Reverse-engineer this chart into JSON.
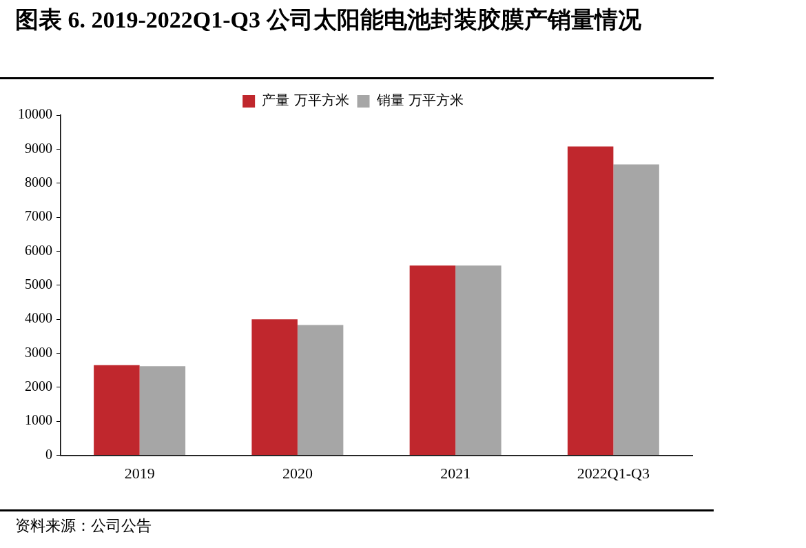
{
  "chart_data": {
    "type": "bar",
    "title": "图表 6.   2019-2022Q1-Q3 公司太阳能电池封装胶膜产销量情况",
    "categories": [
      "2019",
      "2020",
      "2021",
      "2022Q1-Q3"
    ],
    "series": [
      {
        "name": "产量 万平方米",
        "color": "#c0272d",
        "values": [
          2650,
          4000,
          5580,
          9080
        ]
      },
      {
        "name": "销量 万平方米",
        "color": "#a6a6a6",
        "values": [
          2620,
          3830,
          5580,
          8550
        ]
      }
    ],
    "ylim": [
      0,
      10000
    ],
    "yticks": [
      0,
      1000,
      2000,
      3000,
      4000,
      5000,
      6000,
      7000,
      8000,
      9000,
      10000
    ],
    "grid": false,
    "legend": "top",
    "annotations": [
      "资料来源：公司公告"
    ]
  }
}
